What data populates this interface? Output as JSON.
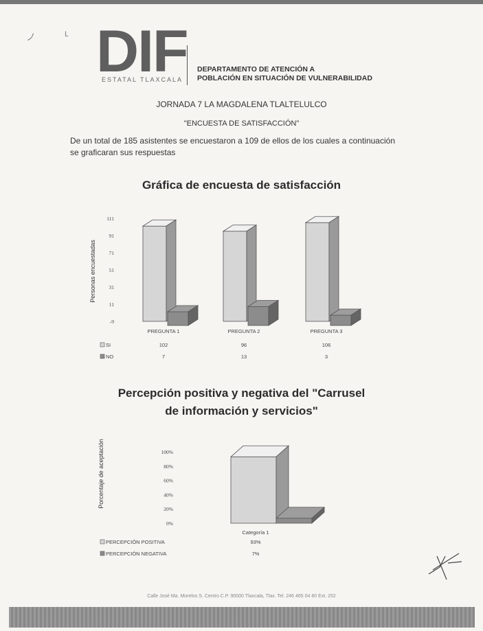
{
  "header": {
    "logo_text": "DIF",
    "logo_subtext": "ESTATAL TLAXCALA",
    "department_line1": "DEPARTAMENTO DE ATENCIÓN A",
    "department_line2": "POBLACIÓN EN SITUACIÓN DE VULNERABILIDAD"
  },
  "document": {
    "event_title": "JORNADA 7 LA MAGDALENA TLALTELULCO",
    "survey_title": "\"ENCUESTA DE SATISFACCIÓN\"",
    "intro_text": "De un total de 185 asistentes se encuestaron a 109 de ellos de los cuales a continuación se graficaran sus respuestas",
    "footer_text": "Calle José Ma. Morelos S. Centro C.P. 90000 Tlaxcala, Tlax. Tel. 246 465 04 80 Ext. 252"
  },
  "chart_data": [
    {
      "type": "bar",
      "title": "Gráfica de encuesta de satisfacción",
      "ylabel": "Personas encuestadas",
      "categories": [
        "PREGUNTA 1",
        "PREGUNTA 2",
        "PREGUNTA 3"
      ],
      "y_ticks": [
        "-9",
        "11",
        "31",
        "51",
        "71",
        "91",
        "111"
      ],
      "ylim": [
        -9,
        111
      ],
      "series": [
        {
          "name": "SI",
          "values": [
            102,
            96,
            106
          ],
          "value_labels": [
            "102",
            "96",
            "106"
          ],
          "color": "#d6d6d6"
        },
        {
          "name": "NO",
          "values": [
            7,
            13,
            3
          ],
          "value_labels": [
            "7",
            "13",
            "3"
          ],
          "color": "#8c8c8c"
        }
      ],
      "legend": "table-below"
    },
    {
      "type": "bar",
      "title_line1": "Percepción positiva y negativa del \"Carrusel",
      "title_line2": "de información y servicios\"",
      "ylabel": "Porcentaje de aceptación",
      "categories": [
        "Categoría 1"
      ],
      "y_ticks": [
        "0%",
        "20%",
        "40%",
        "60%",
        "80%",
        "100%"
      ],
      "ylim": [
        0,
        100
      ],
      "series": [
        {
          "name": "PERCEPCIÓN POSITIVA",
          "values": [
            93
          ],
          "value_labels": [
            "93%"
          ],
          "color": "#d6d6d6"
        },
        {
          "name": "PERCEPCIÓN NEGATIVA",
          "values": [
            7
          ],
          "value_labels": [
            "7%"
          ],
          "color": "#8c8c8c"
        }
      ],
      "legend": "table-below"
    }
  ]
}
